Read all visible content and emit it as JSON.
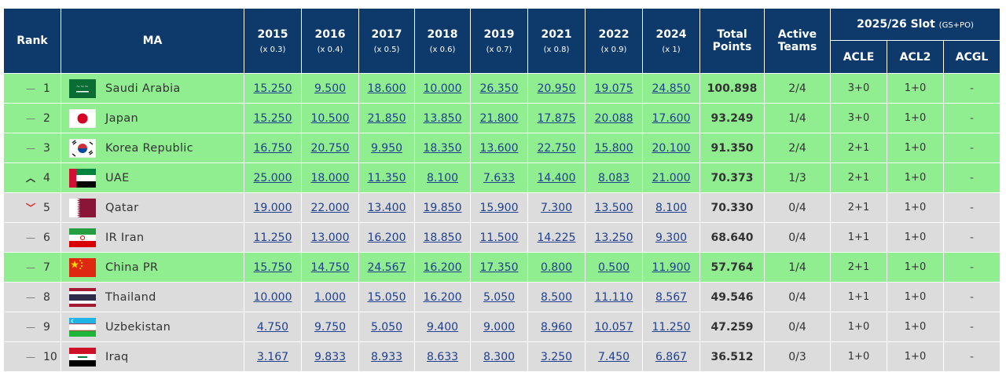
{
  "headers": {
    "rank": "Rank",
    "ma": "MA",
    "years": [
      {
        "year": "2015",
        "mult": "(x 0.3)"
      },
      {
        "year": "2016",
        "mult": "(x 0.4)"
      },
      {
        "year": "2017",
        "mult": "(x 0.5)"
      },
      {
        "year": "2018",
        "mult": "(x 0.6)"
      },
      {
        "year": "2019",
        "mult": "(x 0.7)"
      },
      {
        "year": "2021",
        "mult": "(x 0.8)"
      },
      {
        "year": "2022",
        "mult": "(x 0.9)"
      },
      {
        "year": "2024",
        "mult": "(x 1)"
      }
    ],
    "total_line1": "Total",
    "total_line2": "Points",
    "active_line1": "Active",
    "active_line2": "Teams",
    "slot_title": "2025/26 Slot",
    "slot_note": "(GS+PO)",
    "slot_cols": [
      "ACLE",
      "ACL2",
      "ACGL"
    ]
  },
  "colors": {
    "header_bg": "#0d3a6b",
    "green_row": "#90ee90",
    "grey_row": "#dcdcdc",
    "link": "#1f3f8f",
    "down_arrow": "#e02020"
  },
  "rows": [
    {
      "trend": "same",
      "arrow": "—",
      "rank": "1",
      "flag": "saudi-arabia",
      "ma": "Saudi Arabia",
      "pts": [
        "15.250",
        "9.500",
        "18.600",
        "10.000",
        "26.350",
        "20.950",
        "19.075",
        "24.850"
      ],
      "total": "100.898",
      "active": "2/4",
      "acle": "3+0",
      "acl2": "1+0",
      "acgl": "-",
      "row": "green"
    },
    {
      "trend": "same",
      "arrow": "—",
      "rank": "2",
      "flag": "japan",
      "ma": "Japan",
      "pts": [
        "15.250",
        "10.500",
        "21.850",
        "13.850",
        "21.800",
        "17.875",
        "20.088",
        "17.600"
      ],
      "total": "93.249",
      "active": "1/4",
      "acle": "3+0",
      "acl2": "1+0",
      "acgl": "-",
      "row": "green"
    },
    {
      "trend": "same",
      "arrow": "—",
      "rank": "3",
      "flag": "korea-republic",
      "ma": "Korea Republic",
      "pts": [
        "16.750",
        "20.750",
        "9.950",
        "18.350",
        "13.600",
        "22.750",
        "15.800",
        "20.100"
      ],
      "total": "91.350",
      "active": "2/4",
      "acle": "2+1",
      "acl2": "1+0",
      "acgl": "-",
      "row": "green"
    },
    {
      "trend": "up",
      "arrow": "︿",
      "rank": "4",
      "flag": "uae",
      "ma": "UAE",
      "pts": [
        "25.000",
        "18.000",
        "11.350",
        "8.100",
        "7.633",
        "14.400",
        "8.083",
        "21.000"
      ],
      "total": "70.373",
      "active": "1/3",
      "acle": "2+1",
      "acl2": "1+0",
      "acgl": "-",
      "row": "green"
    },
    {
      "trend": "down",
      "arrow": "﹀",
      "rank": "5",
      "flag": "qatar",
      "ma": "Qatar",
      "pts": [
        "19.000",
        "22.000",
        "13.400",
        "19.850",
        "15.900",
        "7.300",
        "13.500",
        "8.100"
      ],
      "total": "70.330",
      "active": "0/4",
      "acle": "2+1",
      "acl2": "1+0",
      "acgl": "-",
      "row": "grey"
    },
    {
      "trend": "same",
      "arrow": "—",
      "rank": "6",
      "flag": "ir-iran",
      "ma": "IR Iran",
      "pts": [
        "11.250",
        "13.000",
        "16.200",
        "18.850",
        "11.500",
        "14.225",
        "13.250",
        "9.300"
      ],
      "total": "68.640",
      "active": "0/4",
      "acle": "1+1",
      "acl2": "1+0",
      "acgl": "-",
      "row": "grey"
    },
    {
      "trend": "same",
      "arrow": "—",
      "rank": "7",
      "flag": "china-pr",
      "ma": "China PR",
      "pts": [
        "15.750",
        "14.750",
        "24.567",
        "16.200",
        "17.350",
        "0.800",
        "0.500",
        "11.900"
      ],
      "total": "57.764",
      "active": "1/4",
      "acle": "2+1",
      "acl2": "1+0",
      "acgl": "-",
      "row": "green"
    },
    {
      "trend": "same",
      "arrow": "—",
      "rank": "8",
      "flag": "thailand",
      "ma": "Thailand",
      "pts": [
        "10.000",
        "1.000",
        "15.050",
        "16.200",
        "5.050",
        "8.500",
        "11.110",
        "8.567"
      ],
      "total": "49.546",
      "active": "0/4",
      "acle": "1+1",
      "acl2": "1+0",
      "acgl": "-",
      "row": "grey"
    },
    {
      "trend": "same",
      "arrow": "—",
      "rank": "9",
      "flag": "uzbekistan",
      "ma": "Uzbekistan",
      "pts": [
        "4.750",
        "9.750",
        "5.050",
        "9.400",
        "9.000",
        "8.960",
        "10.057",
        "11.250"
      ],
      "total": "47.259",
      "active": "0/4",
      "acle": "1+0",
      "acl2": "1+0",
      "acgl": "-",
      "row": "grey"
    },
    {
      "trend": "same",
      "arrow": "—",
      "rank": "10",
      "flag": "iraq",
      "ma": "Iraq",
      "pts": [
        "3.167",
        "9.833",
        "8.933",
        "8.633",
        "8.300",
        "3.250",
        "7.450",
        "6.867"
      ],
      "total": "36.512",
      "active": "0/3",
      "acle": "1+0",
      "acl2": "1+0",
      "acgl": "-",
      "row": "grey"
    }
  ]
}
